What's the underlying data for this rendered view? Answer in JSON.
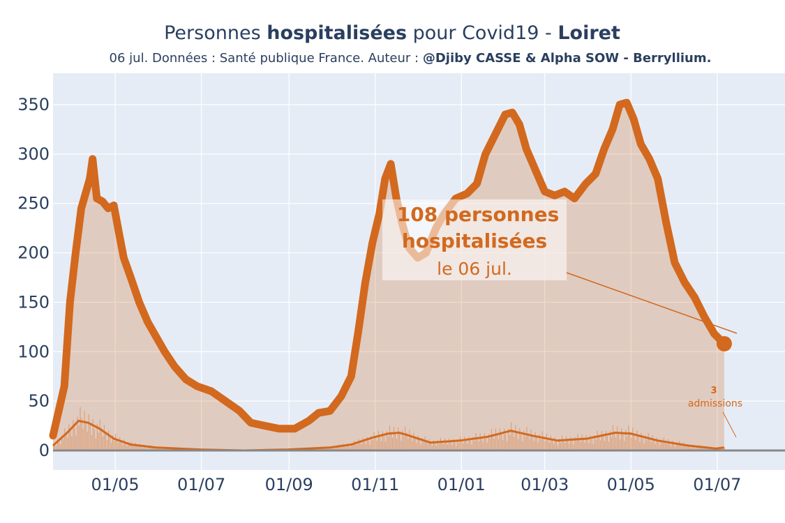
{
  "title": {
    "prefix": "Personnes ",
    "bold1": "hospitalisées",
    "middle": " pour Covid19 - ",
    "bold2": "Loiret"
  },
  "subtitle": {
    "normal": "06 jul. Données : Santé publique France. Auteur : ",
    "bold": "@Djiby CASSE & Alpha SOW - Berryllium."
  },
  "colors": {
    "line": "#d2691e",
    "fill": "rgba(210,105,30,0.25)",
    "plot_bg": "#e5ecf6",
    "grid": "#ffffff",
    "text": "#2a3f5f"
  },
  "annotations": {
    "main_line1": "108 personnes",
    "main_line2": "hospitalisées",
    "main_line3": "le 06 jul.",
    "admissions_value": "3",
    "admissions_label": "admissions"
  },
  "chart_data": {
    "type": "area",
    "ylim": [
      0,
      370
    ],
    "yticks": [
      0,
      50,
      100,
      150,
      200,
      250,
      300,
      350
    ],
    "xlim": [
      "2020-03-18",
      "2021-08-18"
    ],
    "xticks": [
      {
        "date": "2020-05-01",
        "label": "01/05"
      },
      {
        "date": "2020-07-01",
        "label": "01/07"
      },
      {
        "date": "2020-09-01",
        "label": "01/09"
      },
      {
        "date": "2020-11-01",
        "label": "01/11"
      },
      {
        "date": "2021-01-01",
        "label": "01/01"
      },
      {
        "date": "2021-03-01",
        "label": "01/03"
      },
      {
        "date": "2021-05-01",
        "label": "01/05"
      },
      {
        "date": "2021-07-01",
        "label": "01/07"
      }
    ],
    "grid": true,
    "series": [
      {
        "points": [
          [
            "2020-03-18",
            15
          ],
          [
            "2020-03-22",
            40
          ],
          [
            "2020-03-26",
            65
          ],
          [
            "2020-03-30",
            150
          ],
          [
            "2020-04-03",
            200
          ],
          [
            "2020-04-07",
            245
          ],
          [
            "2020-04-10",
            260
          ],
          [
            "2020-04-13",
            275
          ],
          [
            "2020-04-15",
            295
          ],
          [
            "2020-04-18",
            255
          ],
          [
            "2020-04-22",
            252
          ],
          [
            "2020-04-26",
            245
          ],
          [
            "2020-04-30",
            248
          ],
          [
            "2020-05-03",
            225
          ],
          [
            "2020-05-07",
            195
          ],
          [
            "2020-05-12",
            175
          ],
          [
            "2020-05-18",
            150
          ],
          [
            "2020-05-24",
            130
          ],
          [
            "2020-05-30",
            115
          ],
          [
            "2020-06-05",
            100
          ],
          [
            "2020-06-12",
            85
          ],
          [
            "2020-06-20",
            72
          ],
          [
            "2020-06-28",
            65
          ],
          [
            "2020-07-08",
            60
          ],
          [
            "2020-07-18",
            50
          ],
          [
            "2020-07-28",
            40
          ],
          [
            "2020-08-05",
            28
          ],
          [
            "2020-08-15",
            25
          ],
          [
            "2020-08-25",
            22
          ],
          [
            "2020-09-05",
            22
          ],
          [
            "2020-09-15",
            30
          ],
          [
            "2020-09-22",
            38
          ],
          [
            "2020-09-30",
            40
          ],
          [
            "2020-10-08",
            55
          ],
          [
            "2020-10-15",
            75
          ],
          [
            "2020-10-20",
            120
          ],
          [
            "2020-10-25",
            170
          ],
          [
            "2020-10-30",
            210
          ],
          [
            "2020-11-04",
            240
          ],
          [
            "2020-11-08",
            275
          ],
          [
            "2020-11-12",
            290
          ],
          [
            "2020-11-16",
            255
          ],
          [
            "2020-11-20",
            230
          ],
          [
            "2020-11-25",
            205
          ],
          [
            "2020-12-01",
            195
          ],
          [
            "2020-12-07",
            200
          ],
          [
            "2020-12-14",
            225
          ],
          [
            "2020-12-20",
            240
          ],
          [
            "2020-12-28",
            255
          ],
          [
            "2021-01-05",
            260
          ],
          [
            "2021-01-12",
            270
          ],
          [
            "2021-01-18",
            300
          ],
          [
            "2021-01-25",
            320
          ],
          [
            "2021-02-01",
            340
          ],
          [
            "2021-02-06",
            342
          ],
          [
            "2021-02-11",
            330
          ],
          [
            "2021-02-16",
            305
          ],
          [
            "2021-02-22",
            285
          ],
          [
            "2021-03-01",
            262
          ],
          [
            "2021-03-08",
            258
          ],
          [
            "2021-03-15",
            262
          ],
          [
            "2021-03-22",
            255
          ],
          [
            "2021-03-30",
            270
          ],
          [
            "2021-04-06",
            280
          ],
          [
            "2021-04-12",
            305
          ],
          [
            "2021-04-18",
            325
          ],
          [
            "2021-04-23",
            350
          ],
          [
            "2021-04-28",
            352
          ],
          [
            "2021-05-03",
            335
          ],
          [
            "2021-05-08",
            310
          ],
          [
            "2021-05-14",
            295
          ],
          [
            "2021-05-20",
            275
          ],
          [
            "2021-05-26",
            230
          ],
          [
            "2021-06-01",
            190
          ],
          [
            "2021-06-08",
            170
          ],
          [
            "2021-06-15",
            155
          ],
          [
            "2021-06-22",
            135
          ],
          [
            "2021-06-29",
            118
          ],
          [
            "2021-07-06",
            108
          ]
        ]
      },
      {
        "name": "admissions",
        "points": [
          [
            "2020-03-18",
            5
          ],
          [
            "2020-03-28",
            18
          ],
          [
            "2020-04-05",
            30
          ],
          [
            "2020-04-12",
            28
          ],
          [
            "2020-04-20",
            22
          ],
          [
            "2020-04-30",
            12
          ],
          [
            "2020-05-12",
            6
          ],
          [
            "2020-05-30",
            3
          ],
          [
            "2020-06-30",
            1
          ],
          [
            "2020-07-31",
            0
          ],
          [
            "2020-08-31",
            1
          ],
          [
            "2020-09-30",
            3
          ],
          [
            "2020-10-15",
            6
          ],
          [
            "2020-10-30",
            13
          ],
          [
            "2020-11-10",
            17
          ],
          [
            "2020-11-18",
            18
          ],
          [
            "2020-11-25",
            15
          ],
          [
            "2020-12-10",
            8
          ],
          [
            "2020-12-31",
            10
          ],
          [
            "2021-01-20",
            14
          ],
          [
            "2021-02-05",
            20
          ],
          [
            "2021-02-20",
            15
          ],
          [
            "2021-03-10",
            10
          ],
          [
            "2021-03-31",
            12
          ],
          [
            "2021-04-20",
            18
          ],
          [
            "2021-05-01",
            17
          ],
          [
            "2021-05-20",
            10
          ],
          [
            "2021-06-10",
            5
          ],
          [
            "2021-06-30",
            2
          ],
          [
            "2021-07-06",
            3
          ]
        ]
      }
    ]
  }
}
